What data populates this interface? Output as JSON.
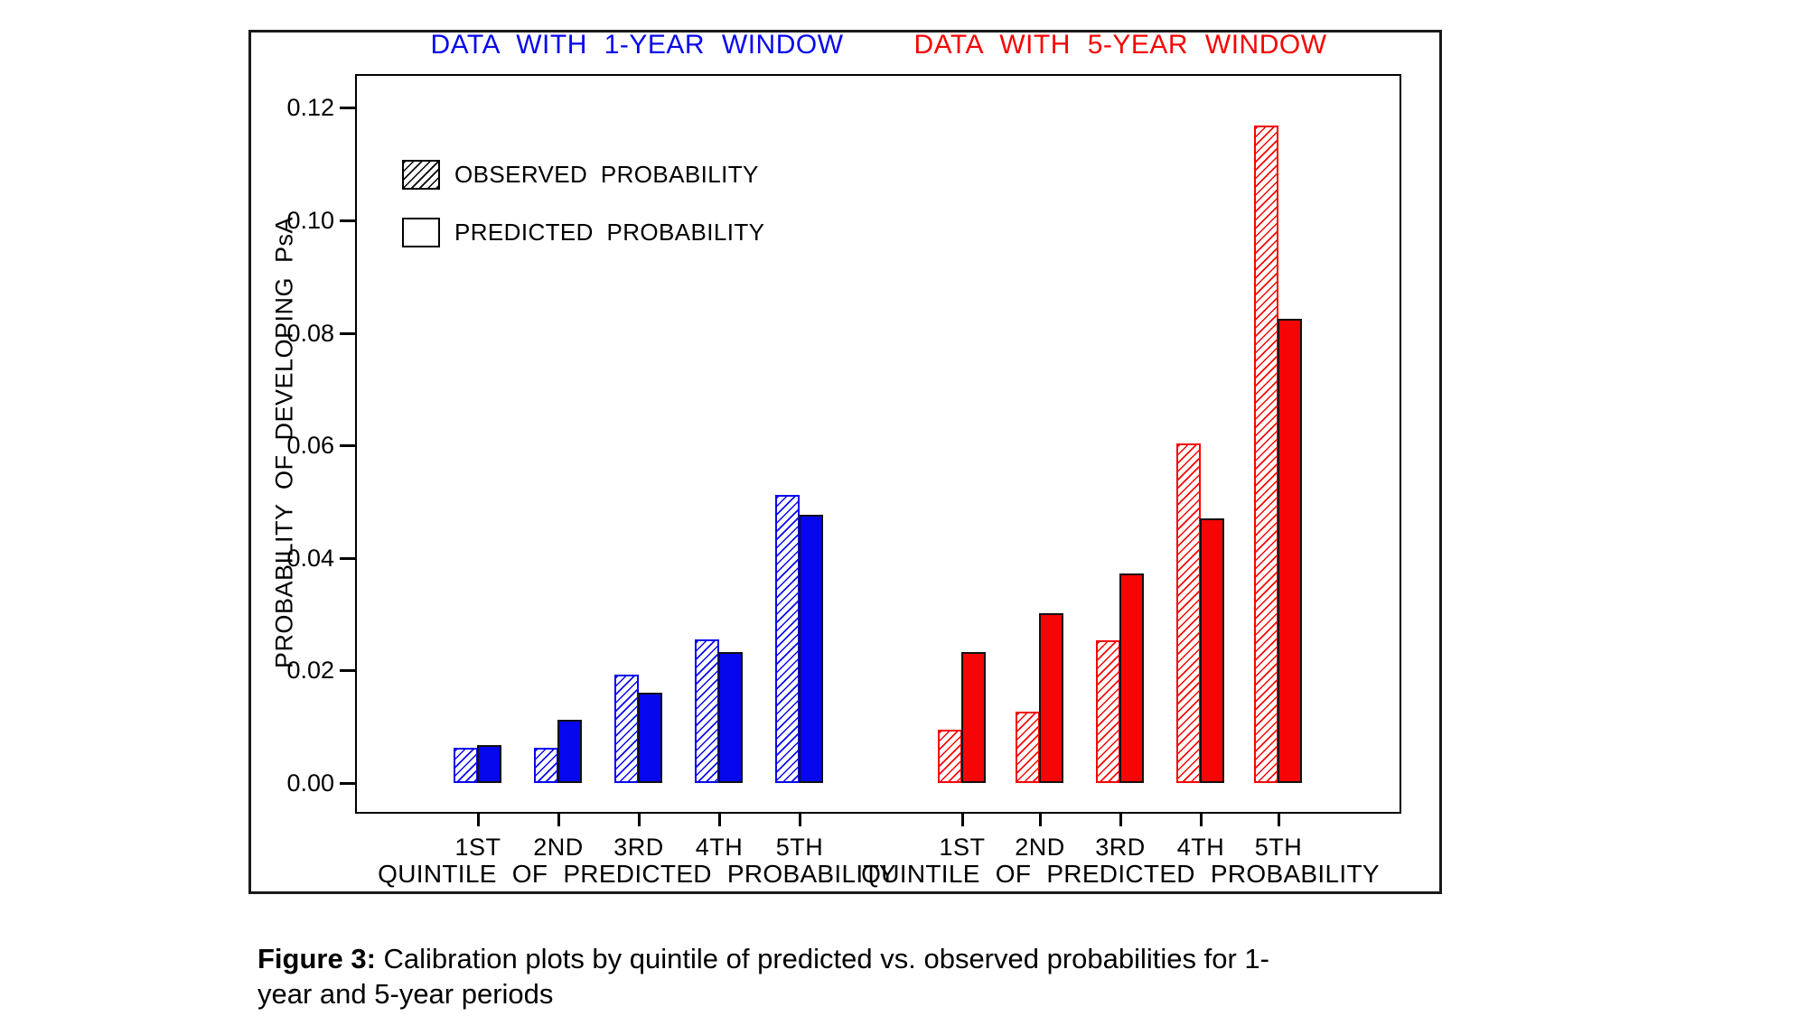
{
  "panel_titles": [
    {
      "text": "DATA WITH 1-YEAR WINDOW",
      "color": "#0707ee"
    },
    {
      "text": "DATA WITH 5-YEAR WINDOW",
      "color": "#f50505"
    }
  ],
  "legend": [
    {
      "label": "OBSERVED PROBABILITY",
      "swatch": "hatched"
    },
    {
      "label": "PREDICTED PROBABILITY",
      "swatch": "open"
    }
  ],
  "y_axis_label": "PROBABILITY OF DEVELOPING PsA",
  "x_axis_label": "QUINTILE OF PREDICTED PROBABILITY",
  "ytick_labels": [
    "0.00",
    "0.02",
    "0.04",
    "0.06",
    "0.08",
    "0.10",
    "0.12"
  ],
  "caption": {
    "label": "Figure 3:",
    "line1": "Calibration plots by quintile of predicted vs. observed probabilities for 1-",
    "line2": "year and 5-year periods"
  },
  "colors": {
    "blue": "#0707ee",
    "red": "#f50505",
    "axis": "#000000"
  },
  "chart_data": [
    {
      "type": "bar",
      "title": "DATA WITH 1-YEAR WINDOW",
      "categories": [
        "1ST",
        "2ND",
        "3RD",
        "4TH",
        "5TH"
      ],
      "series": [
        {
          "name": "OBSERVED PROBABILITY",
          "style": "hatched",
          "values": [
            0.0063,
            0.0063,
            0.0192,
            0.0255,
            0.0512
          ]
        },
        {
          "name": "PREDICTED PROBABILITY",
          "style": "solid",
          "values": [
            0.0068,
            0.0113,
            0.016,
            0.0232,
            0.0477
          ]
        }
      ],
      "color": "#0707ee",
      "xlabel": "QUINTILE OF PREDICTED PROBABILITY",
      "ylabel": "PROBABILITY OF DEVELOPING PsA",
      "ylim": [
        0,
        0.1257
      ],
      "yticks": [
        0,
        0.02,
        0.04,
        0.06,
        0.08,
        0.1,
        0.12
      ],
      "legend_position": "top-left",
      "grid": false
    },
    {
      "type": "bar",
      "title": "DATA WITH 5-YEAR WINDOW",
      "categories": [
        "1ST",
        "2ND",
        "3RD",
        "4TH",
        "5TH"
      ],
      "series": [
        {
          "name": "OBSERVED PROBABILITY",
          "style": "hatched",
          "values": [
            0.0095,
            0.0127,
            0.0253,
            0.0603,
            0.1168
          ]
        },
        {
          "name": "PREDICTED PROBABILITY",
          "style": "solid",
          "values": [
            0.0232,
            0.0301,
            0.0373,
            0.047,
            0.0825
          ]
        }
      ],
      "color": "#f50505",
      "xlabel": "QUINTILE OF PREDICTED PROBABILITY",
      "ylabel": "PROBABILITY OF DEVELOPING PsA",
      "ylim": [
        0,
        0.1257
      ],
      "yticks": [
        0,
        0.02,
        0.04,
        0.06,
        0.08,
        0.1,
        0.12
      ],
      "legend_position": "none",
      "grid": false
    }
  ]
}
